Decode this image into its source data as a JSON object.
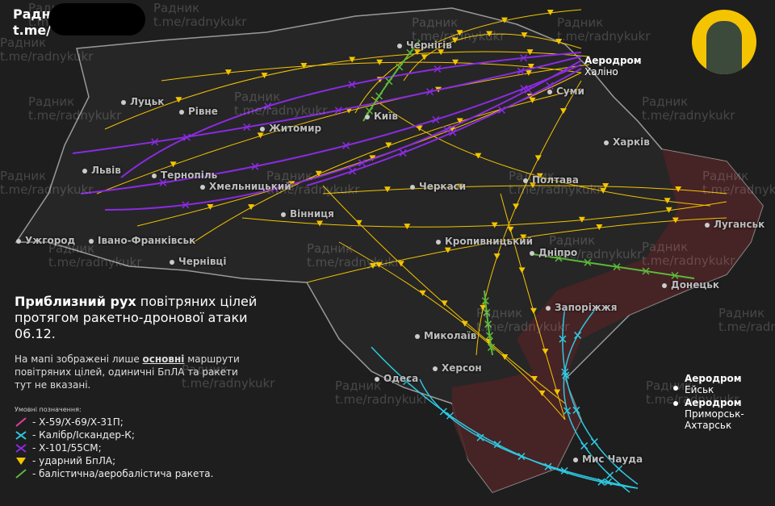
{
  "brand": {
    "line1": "Радн",
    "line2": "t.me/"
  },
  "watermark": {
    "name": "Радник",
    "link": "t.me/radnykukr"
  },
  "title": {
    "bold": "Приблизний рух",
    "rest": " повітряних цілей протягом ракетно-дронової атаки 06.12."
  },
  "description": {
    "before": "На мапі зображені лише ",
    "underlined": "основні",
    "after": " маршрути повітряних цілей, одиничні БпЛА та ракети тут не вказані."
  },
  "legend": {
    "heading": "Умовні позначення:",
    "items": [
      {
        "label": "- Х-59/Х-69/Х-31П;",
        "color": "#e0409a",
        "icon": "missile-pink"
      },
      {
        "label": "- Калібр/Іскандер-К;",
        "color": "#2ec8e0",
        "icon": "cross-cyan"
      },
      {
        "label": "- Х-101/55СМ;",
        "color": "#8a2be2",
        "icon": "cross-purple"
      },
      {
        "label": "- ударний БпЛА;",
        "color": "#f5c400",
        "icon": "drone-triangle"
      },
      {
        "label": "- балістична/аеробалістича ракета.",
        "color": "#5cb83a",
        "icon": "ballistic-line"
      }
    ]
  },
  "cities": [
    "Луцьк",
    "Рівне",
    "Житомир",
    "Київ",
    "Чернігів",
    "Суми",
    "Харків",
    "Полтава",
    "Черкаси",
    "Львів",
    "Тернопіль",
    "Хмельницький",
    "Вінниця",
    "Ужгород",
    "Івано-Франківськ",
    "Чернівці",
    "Кропивницький",
    "Дніпро",
    "Луганськ",
    "Донецьк",
    "Запоріжжя",
    "Миколаїв",
    "Херсон",
    "Одеса",
    "Мис Чауда"
  ],
  "airfields": [
    {
      "title": "Аеродром",
      "name": "Халіно"
    },
    {
      "title": "Аеродром",
      "name": "Ейськ"
    },
    {
      "title": "Аеродром",
      "name": "Приморськ-Ахтарськ"
    }
  ],
  "colors": {
    "drone": "#f5c400",
    "kh101": "#8a2be2",
    "kalibr": "#2ec8e0",
    "ballistic": "#5cb83a",
    "occupied": "#4a2426",
    "avatar_bg": "#f5c400"
  }
}
